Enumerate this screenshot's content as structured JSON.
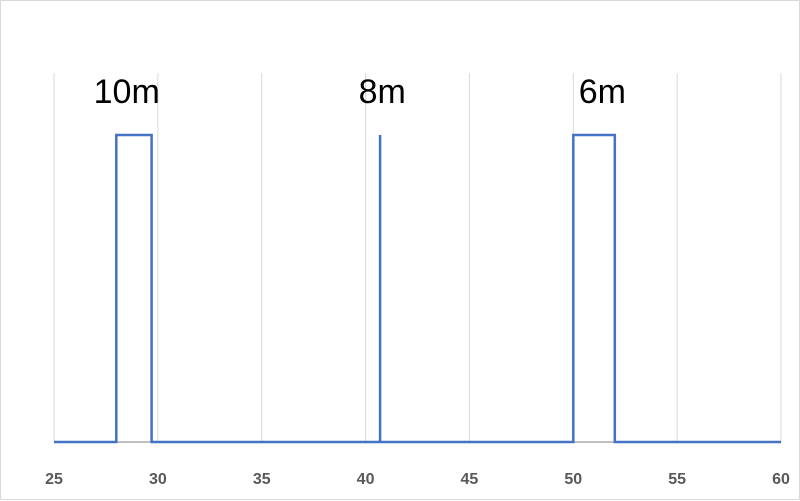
{
  "chart_data": {
    "type": "line",
    "xlim": [
      25,
      60
    ],
    "ylim": [
      0,
      1
    ],
    "x_ticks": [
      "25",
      "30",
      "35",
      "40",
      "45",
      "50",
      "55",
      "60"
    ],
    "grid": "vertical",
    "series": [
      {
        "x": [
          25,
          28,
          28,
          29.7,
          29.7,
          40.7,
          40.7,
          40.7,
          40.7,
          50,
          50,
          52,
          52,
          60
        ],
        "y": [
          0,
          0,
          1,
          1,
          0,
          0,
          0,
          1,
          0,
          0,
          1,
          1,
          0,
          0
        ]
      }
    ],
    "annotations": [
      {
        "text": "10m",
        "x": 28.5
      },
      {
        "text": "8m",
        "x": 40.8
      },
      {
        "text": "6m",
        "x": 51.4
      }
    ],
    "colors": {
      "series": "#4472c4",
      "grid": "#d9d9d9",
      "axis": "#bfbfbf"
    }
  }
}
